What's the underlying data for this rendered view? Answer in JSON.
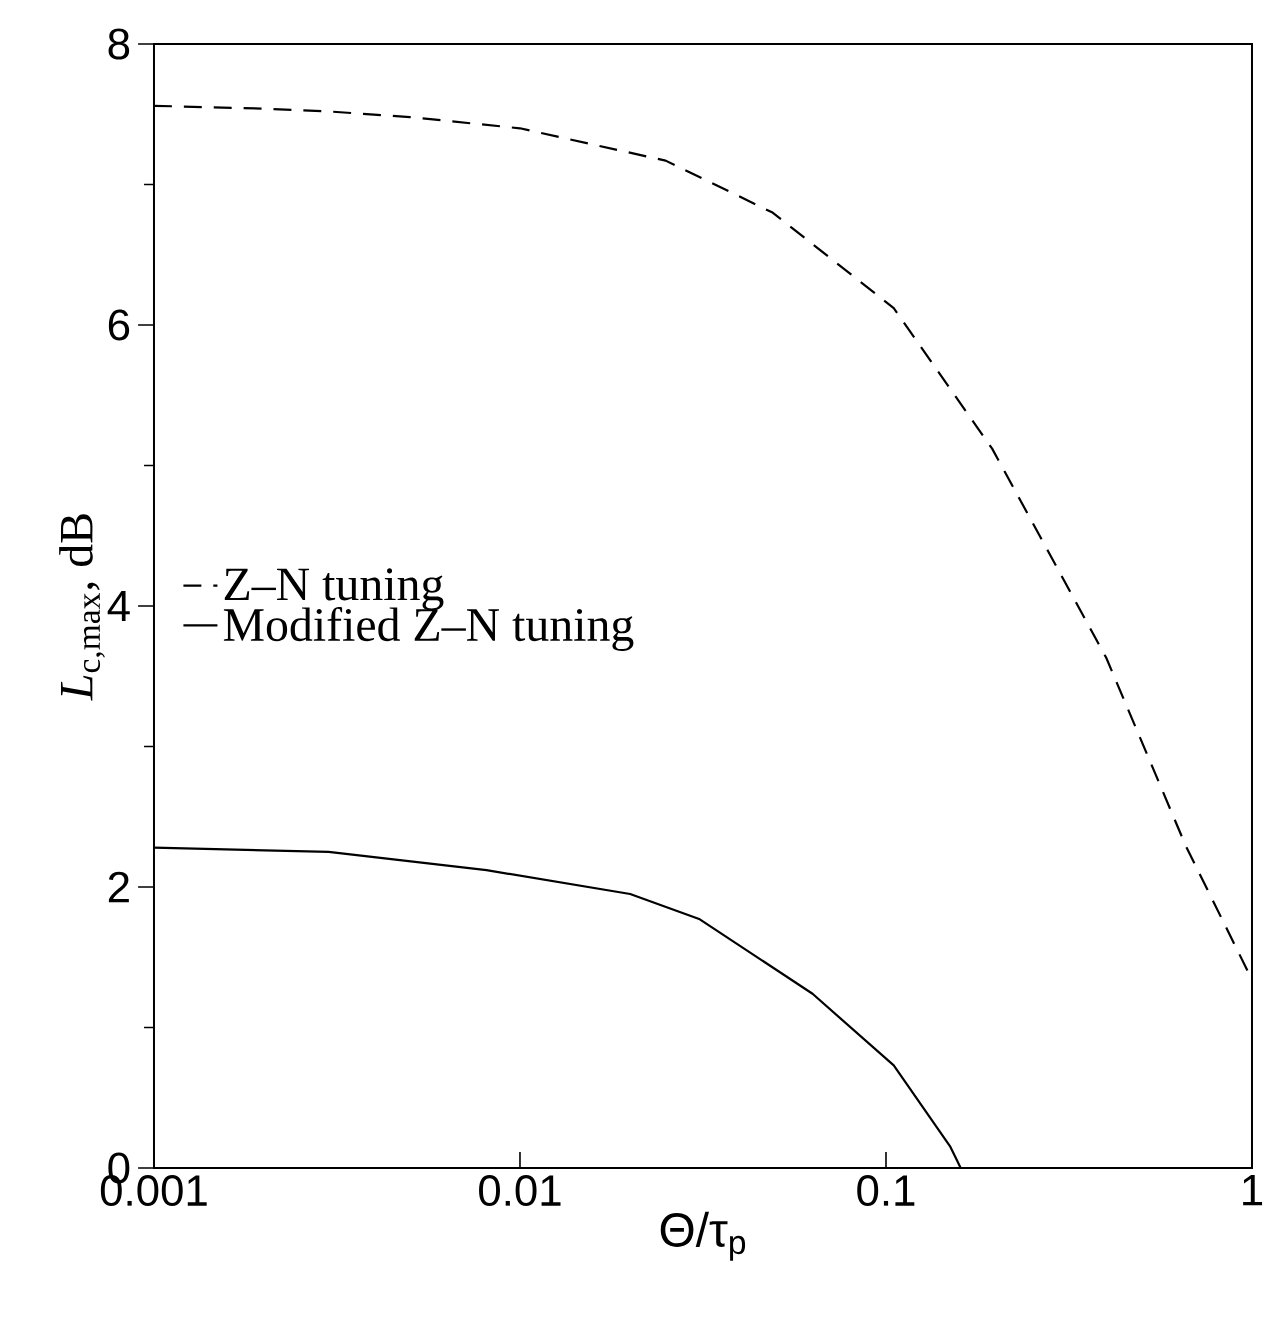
{
  "chart_data": {
    "type": "line",
    "xlabel": "Θ/τ$_{p}$",
    "ylabel": "*L*$_{c,max}$, dB",
    "log": "x",
    "xlim": [
      0.001,
      1
    ],
    "xticks": [
      0.001,
      0.01,
      0.1,
      1
    ],
    "ylim": [
      0,
      8
    ],
    "yticks": [
      0,
      2,
      4,
      6,
      8
    ],
    "legend": "left",
    "grid": false,
    "marker": "none",
    "series": [
      {
        "name": "Z–N tuning",
        "color": "#000000",
        "line_style": "dashed",
        "x": [
          0.001,
          0.002,
          0.003,
          0.005,
          0.01,
          0.025,
          0.049,
          0.105,
          0.195,
          0.4,
          0.66,
          1
        ],
        "values": [
          7.56,
          7.54,
          7.52,
          7.48,
          7.4,
          7.17,
          6.8,
          6.12,
          5.12,
          3.63,
          2.29,
          1.34
        ]
      },
      {
        "name": "Modified Z–N tuning",
        "color": "#000000",
        "line_style": "solid",
        "x": [
          0.001,
          0.003,
          0.0081,
          0.02,
          0.031,
          0.063,
          0.105,
          0.15,
          0.16
        ],
        "values": [
          2.28,
          2.25,
          2.12,
          1.95,
          1.77,
          1.24,
          0.73,
          0.15,
          0
        ]
      }
    ]
  }
}
